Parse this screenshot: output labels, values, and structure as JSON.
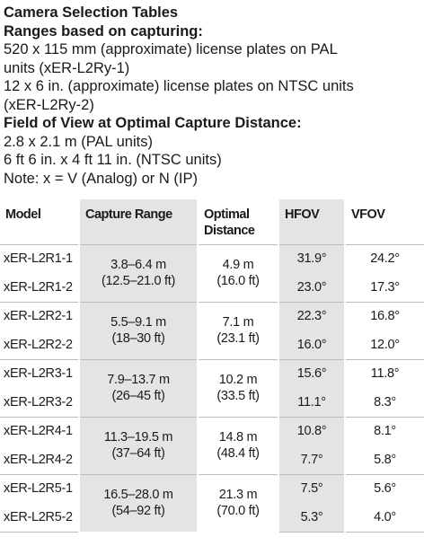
{
  "title": "Camera Selection Tables",
  "ranges_heading": "Ranges based on capturing:",
  "range_lines": [
    "520 x 115 mm (approximate) license plates on PAL",
    "units (xER-L2Ry-1)",
    "12 x 6 in. (approximate) license plates on NTSC units",
    "(xER-L2Ry-2)"
  ],
  "fov_heading": "Field of View at Optimal Capture Distance:",
  "fov_lines": [
    "2.8 x 2.1 m (PAL units)",
    "6 ft 6 in. x 4 ft 11 in. (NTSC units)",
    "Note: x = V (Analog) or N (IP)"
  ],
  "table": {
    "headers": {
      "model": "Model",
      "capture_range": "Capture Range",
      "optimal_distance_1": "Optimal",
      "optimal_distance_2": "Distance",
      "hfov": "HFOV",
      "vfov": "VFOV"
    },
    "groups": [
      {
        "range_m": "3.8–6.4 m",
        "range_ft": "(12.5–21.0 ft)",
        "dist_m": "4.9 m",
        "dist_ft": "(16.0 ft)",
        "rows": [
          {
            "model": "xER-L2R1-1",
            "hfov": "31.9°",
            "vfov": "24.2°"
          },
          {
            "model": "xER-L2R1-2",
            "hfov": "23.0°",
            "vfov": "17.3°"
          }
        ]
      },
      {
        "range_m": "5.5–9.1 m",
        "range_ft": "(18–30 ft)",
        "dist_m": "7.1 m",
        "dist_ft": "(23.1 ft)",
        "rows": [
          {
            "model": "xER-L2R2-1",
            "hfov": "22.3°",
            "vfov": "16.8°"
          },
          {
            "model": "xER-L2R2-2",
            "hfov": "16.0°",
            "vfov": "12.0°"
          }
        ]
      },
      {
        "range_m": "7.9–13.7 m",
        "range_ft": "(26–45 ft)",
        "dist_m": "10.2 m",
        "dist_ft": "(33.5 ft)",
        "rows": [
          {
            "model": "xER-L2R3-1",
            "hfov": "15.6°",
            "vfov": "11.8°"
          },
          {
            "model": "xER-L2R3-2",
            "hfov": "11.1°",
            "vfov": "8.3°"
          }
        ]
      },
      {
        "range_m": "11.3–19.5 m",
        "range_ft": "(37–64 ft)",
        "dist_m": "14.8 m",
        "dist_ft": "(48.4 ft)",
        "rows": [
          {
            "model": "xER-L2R4-1",
            "hfov": "10.8°",
            "vfov": "8.1°"
          },
          {
            "model": "xER-L2R4-2",
            "hfov": "7.7°",
            "vfov": "5.8°"
          }
        ]
      },
      {
        "range_m": "16.5–28.0 m",
        "range_ft": "(54–92 ft)",
        "dist_m": "21.3 m",
        "dist_ft": "(70.0 ft)",
        "rows": [
          {
            "model": "xER-L2R5-1",
            "hfov": "7.5°",
            "vfov": "5.6°"
          },
          {
            "model": "xER-L2R5-2",
            "hfov": "5.3°",
            "vfov": "4.0°"
          }
        ]
      }
    ]
  }
}
